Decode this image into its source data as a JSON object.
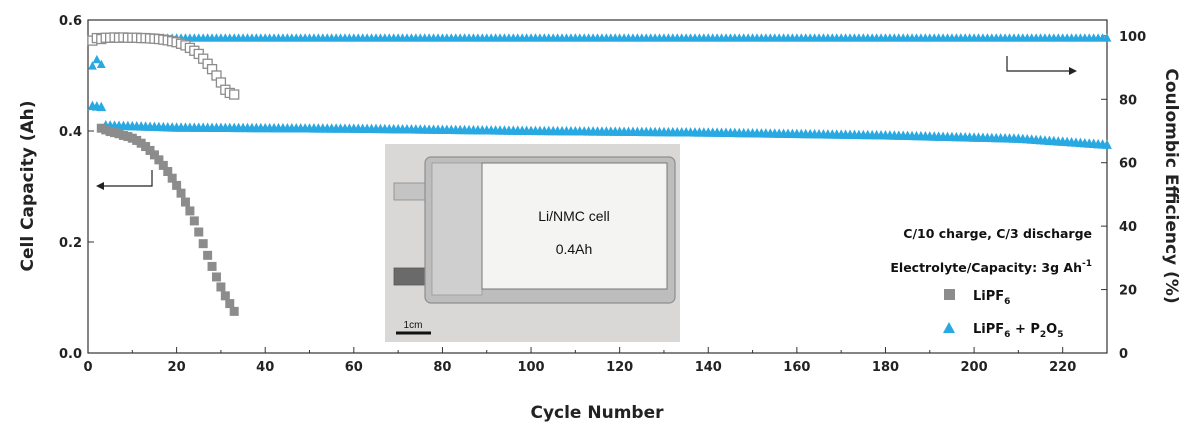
{
  "chart_data": {
    "type": "scatter",
    "xlabel": "Cycle Number",
    "ylabel_left": "Cell Capacity (Ah)",
    "ylabel_right": "Coulombic Efficiency (%)",
    "xlim": [
      0,
      230
    ],
    "ylim_left": [
      0,
      0.6
    ],
    "ylim_right": [
      0,
      105
    ],
    "x_ticks": [
      "0",
      "20",
      "40",
      "60",
      "80",
      "100",
      "120",
      "140",
      "160",
      "180",
      "200",
      "220"
    ],
    "y_left_ticks": [
      "0.0",
      "0.2",
      "0.4",
      "0.6"
    ],
    "y_right_ticks": [
      "0",
      "20",
      "40",
      "60",
      "80",
      "100"
    ],
    "annotation_line1": "C/10 charge, C/3 discharge",
    "annotation_line2": "Electrolyte/Capacity: 3g Ah",
    "annotation_line2_sup": "-1",
    "legend": [
      {
        "base": "LiPF",
        "sub": "6",
        "rest": ""
      },
      {
        "base": "LiPF",
        "sub": "6",
        "rest": " + P",
        "sub2": "2",
        "rest2": "O",
        "sub3": "5"
      }
    ],
    "inset": {
      "label_line1": "Li/NMC cell",
      "label_line2": "0.4Ah",
      "scale_bar": "1cm"
    },
    "colors": {
      "lipf6": "#8c8c8c",
      "p2o5": "#29a9e1"
    },
    "series": [
      {
        "name": "LiPF6",
        "axis": "left",
        "marker": "square-filled",
        "x": [
          3,
          4,
          5,
          6,
          7,
          8,
          9,
          10,
          11,
          12,
          13,
          14,
          15,
          16,
          17,
          18,
          19,
          20,
          21,
          22,
          23,
          24,
          25,
          26,
          27,
          28,
          29,
          30,
          31,
          32,
          33
        ],
        "values": [
          0.405,
          0.402,
          0.399,
          0.397,
          0.395,
          0.392,
          0.39,
          0.387,
          0.383,
          0.378,
          0.372,
          0.365,
          0.357,
          0.348,
          0.338,
          0.327,
          0.315,
          0.302,
          0.288,
          0.272,
          0.256,
          0.238,
          0.218,
          0.197,
          0.176,
          0.156,
          0.137,
          0.119,
          0.103,
          0.089,
          0.075
        ]
      },
      {
        "name": "LiPF6",
        "axis": "right",
        "marker": "square-open",
        "x": [
          1,
          2,
          3,
          4,
          5,
          6,
          7,
          8,
          9,
          10,
          11,
          12,
          13,
          14,
          15,
          16,
          17,
          18,
          19,
          20,
          21,
          22,
          23,
          24,
          25,
          26,
          27,
          28,
          29,
          30,
          31,
          32,
          33
        ],
        "values": [
          98.5,
          99.3,
          99.0,
          99.4,
          99.4,
          99.5,
          99.4,
          99.5,
          99.4,
          99.4,
          99.4,
          99.3,
          99.3,
          99.2,
          99.1,
          99.0,
          98.8,
          98.6,
          98.3,
          98.0,
          97.5,
          97.0,
          96.2,
          95.3,
          94.3,
          92.8,
          91.2,
          89.5,
          87.5,
          85.3,
          83.0,
          82.0,
          81.5
        ]
      },
      {
        "name": "LiPF6 + P2O5",
        "axis": "left",
        "marker": "triangle-filled",
        "x_start": 1,
        "x_end": 230,
        "points": [
          [
            1,
            0.445
          ],
          [
            3,
            0.443
          ],
          [
            4,
            0.41
          ],
          [
            20,
            0.406
          ],
          [
            60,
            0.404
          ],
          [
            100,
            0.4
          ],
          [
            140,
            0.397
          ],
          [
            180,
            0.392
          ],
          [
            210,
            0.386
          ],
          [
            230,
            0.375
          ]
        ]
      },
      {
        "name": "LiPF6 + P2O5",
        "axis": "right",
        "marker": "triangle-filled",
        "x_start": 1,
        "x_end": 230,
        "points": [
          [
            1,
            90.5
          ],
          [
            2,
            92.5
          ],
          [
            3,
            91
          ],
          [
            4,
            99.5
          ],
          [
            5,
            99.0
          ],
          [
            10,
            99.3
          ],
          [
            230,
            99.3
          ]
        ]
      }
    ]
  }
}
